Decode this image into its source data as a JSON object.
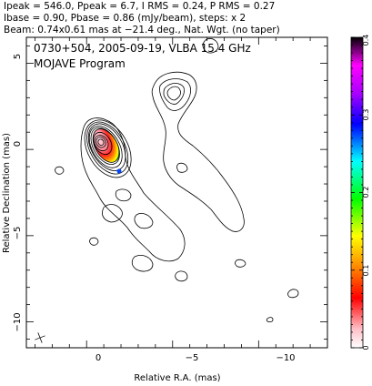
{
  "header": {
    "line1": "Ipeak = 546.0, Ppeak = 6.7, I RMS = 0.24, P RMS = 0.27",
    "line2": "Ibase = 0.90, Pbase = 0.86 (mJy/beam), steps: x 2",
    "line3": "Beam: 0.74x0.61 mas at −21.4 deg., Nat. Wgt. (no taper)"
  },
  "annotation": {
    "line1": "0730+504, 2005-09-19, VLBA 15.4 GHz",
    "line2": "MOJAVE Program"
  },
  "chart_data": {
    "type": "contour",
    "title": "",
    "xlabel": "Relative R.A. (mas)",
    "ylabel": "Relative Declination (mas)",
    "xlim": [
      3.5,
      -14
    ],
    "ylim": [
      -11.5,
      6.5
    ],
    "xticks": [
      0,
      -5,
      -10
    ],
    "yticks": [
      5,
      0,
      -5,
      -10
    ],
    "colorbar": {
      "range": [
        0,
        0.4
      ],
      "ticks": [
        0,
        0.1,
        0.2,
        0.3,
        0.4
      ],
      "colors": [
        "#ffffff",
        "#ff9999",
        "#ff0000",
        "#ff8800",
        "#ffff00",
        "#00ff00",
        "#00ffff",
        "#0000ff",
        "#aa00ff",
        "#ff00ff",
        "#000000"
      ]
    },
    "core": {
      "x": 0,
      "y": 0
    },
    "beam": {
      "major": 0.74,
      "minor": 0.61,
      "pa_deg": -21.4
    },
    "labels": {
      "x0": "0",
      "x5": "−5",
      "x10": "−10",
      "y5": "5",
      "y0": "0",
      "ym5": "−5",
      "ym10": "−10",
      "cb0": "0",
      "cb1": "0.1",
      "cb2": "0.2",
      "cb3": "0.3",
      "cb4": "0.4"
    }
  }
}
